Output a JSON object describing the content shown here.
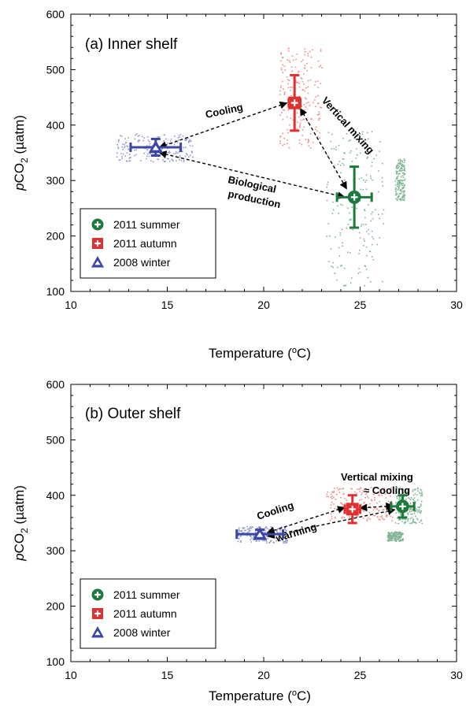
{
  "colors": {
    "summer": "#1e7a3c",
    "autumn": "#e03030",
    "winter": "#3c46a5"
  },
  "chart_data": [
    {
      "type": "scatter",
      "title": "(a) Inner shelf",
      "xlabel": "Temperature (°C)",
      "ylabel": "pCO2 (µatm)",
      "xlim": [
        10,
        30
      ],
      "ylim": [
        100,
        600
      ],
      "xticks": [
        "10",
        "15",
        "20",
        "25",
        "30"
      ],
      "yticks": [
        "100",
        "200",
        "300",
        "400",
        "500",
        "600"
      ],
      "legend_position": "bottom-left",
      "legend": [
        "2011 summer",
        "2011 autumn",
        "2008 winter"
      ],
      "series": [
        {
          "name": "2011 summer",
          "mean": [
            24.7,
            270
          ],
          "xerr": 0.9,
          "yerr": 55,
          "symbol": "circle",
          "scatter_ranges": [
            {
              "x": [
                23.2,
                26.2
              ],
              "y": [
                110,
                390
              ]
            },
            {
              "x": [
                26.8,
                27.3
              ],
              "y": [
                265,
                340
              ]
            }
          ]
        },
        {
          "name": "2011 autumn",
          "mean": [
            21.6,
            440
          ],
          "xerr": 0.3,
          "yerr": 50,
          "symbol": "square",
          "scatter_ranges": [
            {
              "x": [
                20.8,
                23.0
              ],
              "y": [
                360,
                545
              ]
            }
          ]
        },
        {
          "name": "2008 winter",
          "mean": [
            14.4,
            360
          ],
          "xerr": 1.3,
          "yerr": 15,
          "symbol": "triangle",
          "scatter_ranges": [
            {
              "x": [
                12.3,
                16.3
              ],
              "y": [
                335,
                385
              ]
            }
          ]
        }
      ],
      "arrows": [
        {
          "label": "Cooling",
          "from": [
            21.2,
            440
          ],
          "to": [
            14.6,
            360
          ]
        },
        {
          "label": "Vertical mixing",
          "from": [
            21.9,
            430
          ],
          "to": [
            24.3,
            285
          ]
        },
        {
          "label": "Biological production",
          "from": [
            14.6,
            350
          ],
          "to": [
            24.2,
            270
          ]
        }
      ]
    },
    {
      "type": "scatter",
      "title": "(b) Outer shelf",
      "xlabel": "Temperature (°C)",
      "ylabel": "pCO2 (µatm)",
      "xlim": [
        10,
        30
      ],
      "ylim": [
        100,
        600
      ],
      "xticks": [
        "10",
        "15",
        "20",
        "25",
        "30"
      ],
      "yticks": [
        "100",
        "200",
        "300",
        "400",
        "500",
        "600"
      ],
      "legend_position": "bottom-left",
      "legend": [
        "2011 summer",
        "2011 autumn",
        "2008 winter"
      ],
      "series": [
        {
          "name": "2011 summer",
          "mean": [
            27.2,
            380
          ],
          "xerr": 0.6,
          "yerr": 20,
          "symbol": "circle",
          "scatter_ranges": [
            {
              "x": [
                26.8,
                28.2
              ],
              "y": [
                350,
                415
              ]
            },
            {
              "x": [
                26.4,
                27.2
              ],
              "y": [
                318,
                335
              ]
            }
          ]
        },
        {
          "name": "2011 autumn",
          "mean": [
            24.6,
            375
          ],
          "xerr": 0.4,
          "yerr": 25,
          "symbol": "square",
          "scatter_ranges": [
            {
              "x": [
                23.2,
                26.7
              ],
              "y": [
                355,
                415
              ]
            }
          ]
        },
        {
          "name": "2008 winter",
          "mean": [
            19.8,
            330
          ],
          "xerr": 1.2,
          "yerr": 8,
          "symbol": "triangle",
          "scatter_ranges": [
            {
              "x": [
                18.6,
                21.2
              ],
              "y": [
                315,
                345
              ]
            }
          ]
        }
      ],
      "arrows": [
        {
          "label": "Cooling",
          "from": [
            24.2,
            378
          ],
          "to": [
            20.2,
            333
          ]
        },
        {
          "label": "warming",
          "from": [
            20.2,
            326
          ],
          "to": [
            26.8,
            374
          ]
        },
        {
          "label": "Vertical mixing",
          "from": [
            26.7,
            381
          ],
          "to": [
            25.0,
            377
          ]
        },
        {
          "label": "≈ Cooling",
          "from": null,
          "to": null
        }
      ]
    }
  ]
}
